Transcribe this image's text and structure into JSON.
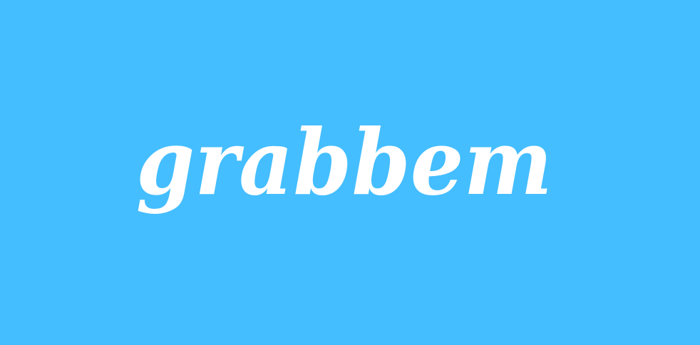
{
  "brand": {
    "name": "grabbem",
    "background_color": "#44BEFF",
    "text_color": "#FFFFFF"
  }
}
